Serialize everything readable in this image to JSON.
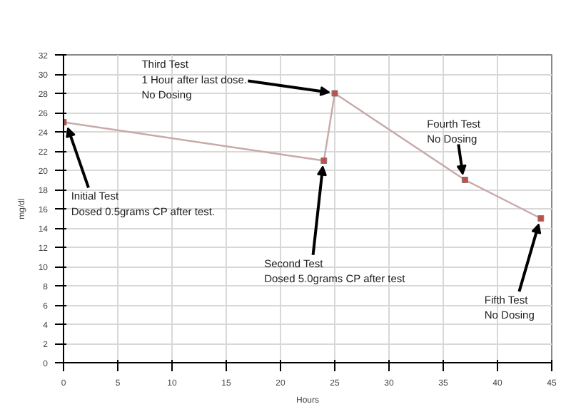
{
  "chart_data": {
    "type": "line",
    "xlabel": "Hours",
    "ylabel": "mg/dl",
    "x": [
      0,
      24,
      25,
      37,
      44
    ],
    "series": [
      {
        "color": "#c9a9a9",
        "values": [
          25,
          21,
          28,
          19,
          15
        ]
      }
    ],
    "marker": "square",
    "xlim": [
      0,
      45
    ],
    "xticks": [
      0,
      5,
      10,
      15,
      20,
      25,
      30,
      35,
      40,
      45
    ],
    "ylim": [
      0,
      32
    ],
    "yticks": [
      0,
      2,
      4,
      6,
      8,
      10,
      12,
      14,
      16,
      18,
      20,
      22,
      24,
      26,
      28,
      30,
      32
    ],
    "grid": true,
    "annotations": [
      {
        "text": "Initial Test\nDosed 0.5grams CP after test.",
        "x": 0,
        "y": 25
      },
      {
        "text": "Second Test\nDosed 5.0grams CP after test",
        "x": 24,
        "y": 21
      },
      {
        "text": "Third Test\n1 Hour after last dose.\nNo Dosing",
        "x": 25,
        "y": 28
      },
      {
        "text": "Fourth Test\nNo Dosing",
        "x": 37,
        "y": 19
      },
      {
        "text": "Fifth Test\nNo Dosing",
        "x": 44,
        "y": 15
      }
    ]
  }
}
